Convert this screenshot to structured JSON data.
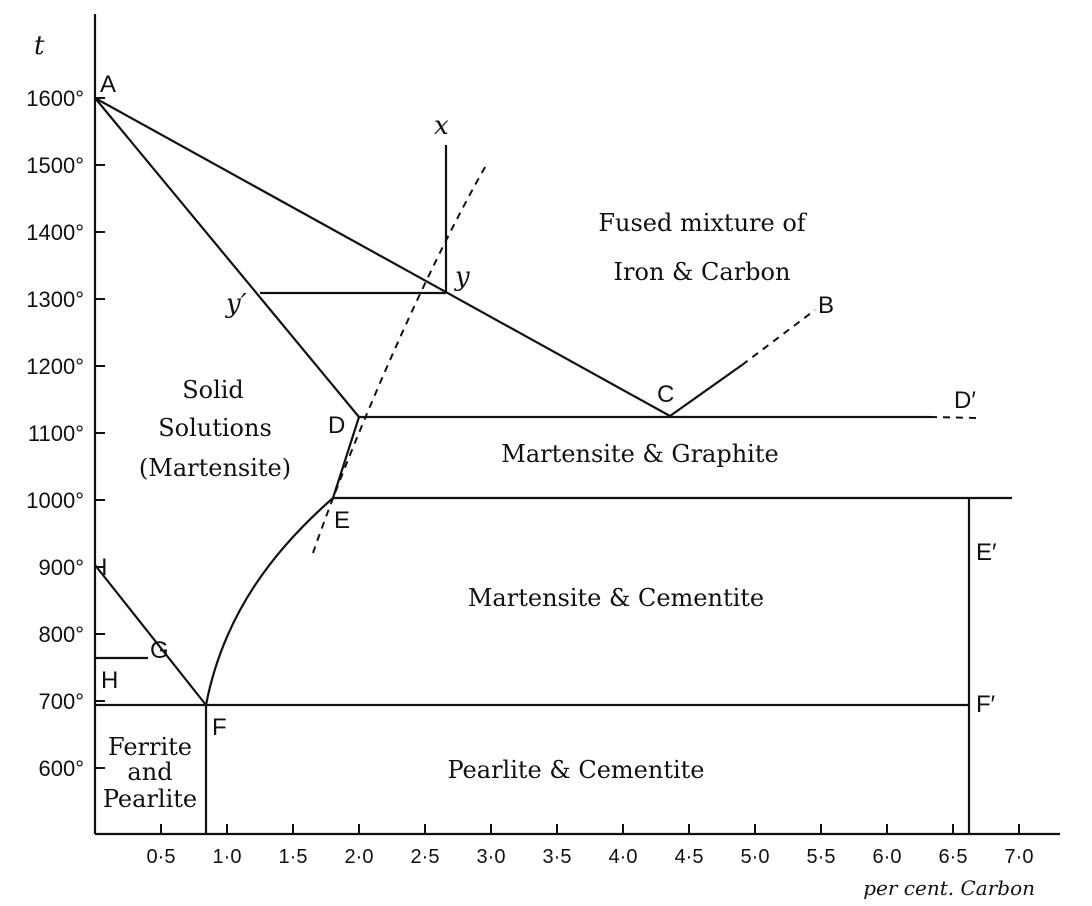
{
  "axes": {
    "y_symbol": "t",
    "x_caption": "per cent. Carbon",
    "y_ticks": [
      "600°",
      "700°",
      "800°",
      "900°",
      "1000°",
      "1100°",
      "1200°",
      "1300°",
      "1400°",
      "1500°",
      "1600°"
    ],
    "x_ticks": [
      "0·5",
      "1·0",
      "1·5",
      "2·0",
      "2·5",
      "3·0",
      "3·5",
      "4·0",
      "4·5",
      "5·0",
      "5·5",
      "6·0",
      "6·5",
      "7·0"
    ]
  },
  "points": {
    "A": "A",
    "B": "B",
    "C": "C",
    "D": "D",
    "D_prime": "D′",
    "E": "E",
    "E_prime": "E′",
    "F": "F",
    "F_prime": "F′",
    "G": "G",
    "H": "H",
    "I": "I",
    "x": "x",
    "y": "y",
    "y_prime": "y′"
  },
  "regions": {
    "fused": [
      "Fused mixture of",
      "Iron & Carbon"
    ],
    "solid": [
      "Solid",
      "Solutions",
      "(Martensite)"
    ],
    "mart_graphite": "Martensite & Graphite",
    "mart_cementite": "Martensite & Cementite",
    "pearlite_cementite": "Pearlite & Cementite",
    "ferrite_pearlite": [
      "Ferrite",
      "and",
      "Pearlite"
    ]
  }
}
